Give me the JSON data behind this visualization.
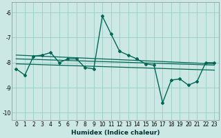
{
  "xlabel": "Humidex (Indice chaleur)",
  "bg_color": "#cce8e4",
  "grid_color": "#99ccc4",
  "line_color": "#006655",
  "xlim": [
    -0.5,
    23.5
  ],
  "ylim": [
    -10.3,
    -5.6
  ],
  "xticks": [
    0,
    1,
    2,
    3,
    4,
    5,
    6,
    7,
    8,
    9,
    10,
    11,
    12,
    13,
    14,
    15,
    16,
    17,
    18,
    19,
    20,
    21,
    22,
    23
  ],
  "yticks": [
    -10,
    -9,
    -8,
    -7,
    -6
  ],
  "main_x": [
    0,
    1,
    2,
    3,
    4,
    5,
    6,
    7,
    8,
    9,
    10,
    11,
    12,
    13,
    14,
    15,
    16,
    17,
    18,
    19,
    20,
    21,
    22,
    23
  ],
  "main_y": [
    -8.25,
    -8.5,
    -7.75,
    -7.7,
    -7.6,
    -8.0,
    -7.85,
    -7.85,
    -8.2,
    -8.25,
    -6.15,
    -6.85,
    -7.55,
    -7.7,
    -7.85,
    -8.05,
    -8.1,
    -9.6,
    -8.7,
    -8.65,
    -8.9,
    -8.75,
    -8.0,
    -8.0
  ],
  "line1_x": [
    0,
    23
  ],
  "line1_y": [
    -7.7,
    -8.05
  ],
  "line2_x": [
    0,
    23
  ],
  "line2_y": [
    -7.85,
    -8.1
  ],
  "line3_x": [
    0,
    23
  ],
  "line3_y": [
    -8.05,
    -8.3
  ]
}
